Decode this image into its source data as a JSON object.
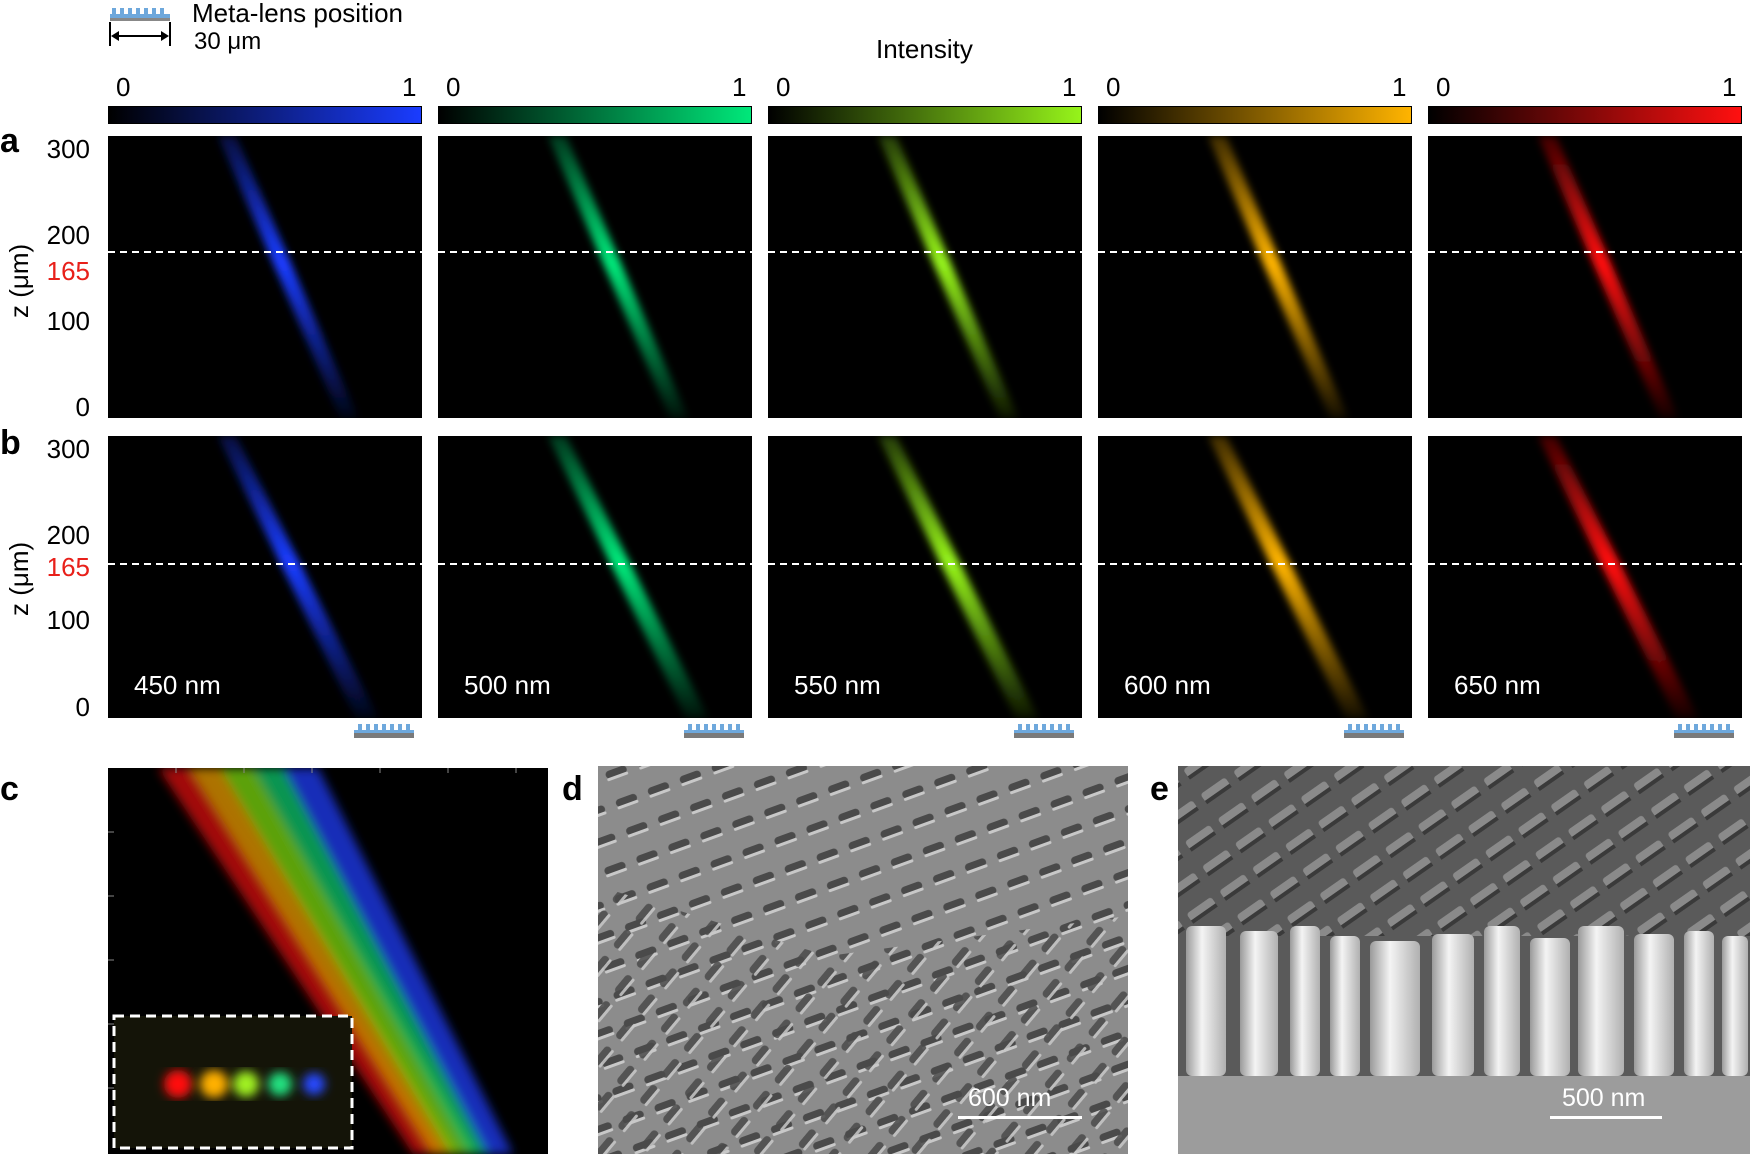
{
  "header": {
    "meta_lens_label": "Meta-lens position",
    "scale_label": "30 μm",
    "intensity_label": "Intensity"
  },
  "colorbars": [
    {
      "min": "0",
      "max": "1",
      "color": "#1a3cff"
    },
    {
      "min": "0",
      "max": "1",
      "color": "#00e87a"
    },
    {
      "min": "0",
      "max": "1",
      "color": "#96f41a"
    },
    {
      "min": "0",
      "max": "1",
      "color": "#ffb400"
    },
    {
      "min": "0",
      "max": "1",
      "color": "#ff1010"
    }
  ],
  "panels": {
    "a": "a",
    "b": "b",
    "c": "c",
    "d": "d",
    "e": "e"
  },
  "axis": {
    "ylabel": "z (μm)",
    "ticks": [
      "300",
      "200",
      "165",
      "100",
      "0"
    ],
    "highlight_tick": "165",
    "highlight_color": "#e8201a"
  },
  "wavelengths": [
    "450 nm",
    "500 nm",
    "550 nm",
    "600 nm",
    "650 nm"
  ],
  "sem": {
    "d_scale": "600 nm",
    "e_scale": "500 nm"
  }
}
